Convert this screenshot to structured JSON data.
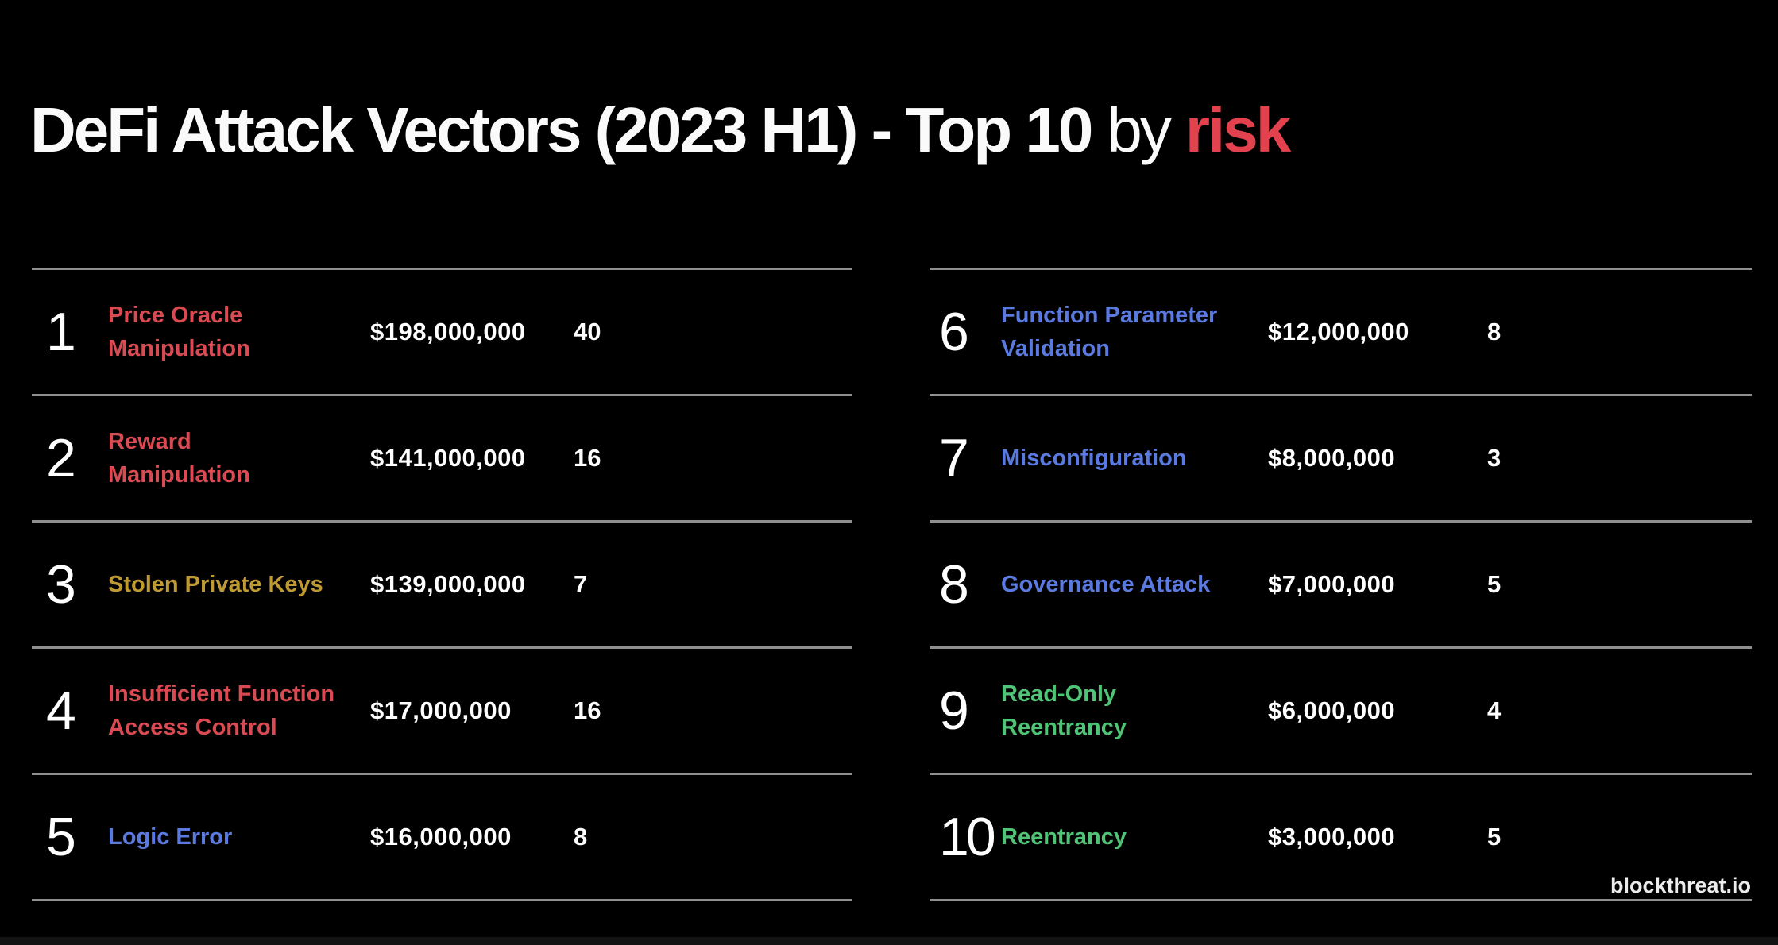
{
  "title": {
    "main": "DeFi Attack Vectors (2023 H1) - Top 10",
    "connector": "by",
    "highlight": "risk"
  },
  "watermark": "blockthreat.io",
  "colors": {
    "background": "#000000",
    "title_text": "#fafafa",
    "highlight_red": "#e2414e",
    "severity_red": "#d94a52",
    "severity_gold": "#bf9a33",
    "severity_blue": "#5b7ae0",
    "severity_green": "#4fc476",
    "divider_gray": "#8f8f8f",
    "value_text": "#ffffff"
  },
  "entries": [
    {
      "rank": "1",
      "label": "Price Oracle\nManipulation",
      "amount": "$198,000,000",
      "count": "40",
      "color": "#d94a52"
    },
    {
      "rank": "2",
      "label": "Reward\nManipulation",
      "amount": "$141,000,000",
      "count": "16",
      "color": "#d94a52"
    },
    {
      "rank": "3",
      "label": "Stolen Private Keys",
      "amount": "$139,000,000",
      "count": "7",
      "color": "#bf9a33"
    },
    {
      "rank": "4",
      "label": "Insufficient Function\nAccess Control",
      "amount": "$17,000,000",
      "count": "16",
      "color": "#d94a52"
    },
    {
      "rank": "5",
      "label": "Logic Error",
      "amount": "$16,000,000",
      "count": "8",
      "color": "#5b7ae0"
    },
    {
      "rank": "6",
      "label": "Function Parameter\nValidation",
      "amount": "$12,000,000",
      "count": "8",
      "color": "#5b7ae0"
    },
    {
      "rank": "7",
      "label": "Misconfiguration",
      "amount": "$8,000,000",
      "count": "3",
      "color": "#5b7ae0"
    },
    {
      "rank": "8",
      "label": "Governance Attack",
      "amount": "$7,000,000",
      "count": "5",
      "color": "#5b7ae0"
    },
    {
      "rank": "9",
      "label": "Read-Only\nReentrancy",
      "amount": "$6,000,000",
      "count": "4",
      "color": "#4fc476"
    },
    {
      "rank": "10",
      "label": "Reentrancy",
      "amount": "$3,000,000",
      "count": "5",
      "color": "#4fc476"
    }
  ],
  "chart_data": {
    "type": "table",
    "title": "DeFi Attack Vectors (2023 H1) - Top 10 by risk",
    "columns": [
      "rank",
      "attack_vector",
      "losses_usd",
      "incident_count",
      "label_color"
    ],
    "rows": [
      [
        1,
        "Price Oracle Manipulation",
        198000000,
        40,
        "#d94a52"
      ],
      [
        2,
        "Reward Manipulation",
        141000000,
        16,
        "#d94a52"
      ],
      [
        3,
        "Stolen Private Keys",
        139000000,
        7,
        "#bf9a33"
      ],
      [
        4,
        "Insufficient Function Access Control",
        17000000,
        16,
        "#d94a52"
      ],
      [
        5,
        "Logic Error",
        16000000,
        8,
        "#5b7ae0"
      ],
      [
        6,
        "Function Parameter Validation",
        12000000,
        8,
        "#5b7ae0"
      ],
      [
        7,
        "Misconfiguration",
        8000000,
        3,
        "#5b7ae0"
      ],
      [
        8,
        "Governance Attack",
        7000000,
        5,
        "#5b7ae0"
      ],
      [
        9,
        "Read-Only Reentrancy",
        6000000,
        4,
        "#4fc476"
      ],
      [
        10,
        "Reentrancy",
        3000000,
        5,
        "#4fc476"
      ]
    ],
    "layout": "two-column ranked list, ranks 1-5 left, 6-10 right",
    "source_label": "blockthreat.io"
  }
}
